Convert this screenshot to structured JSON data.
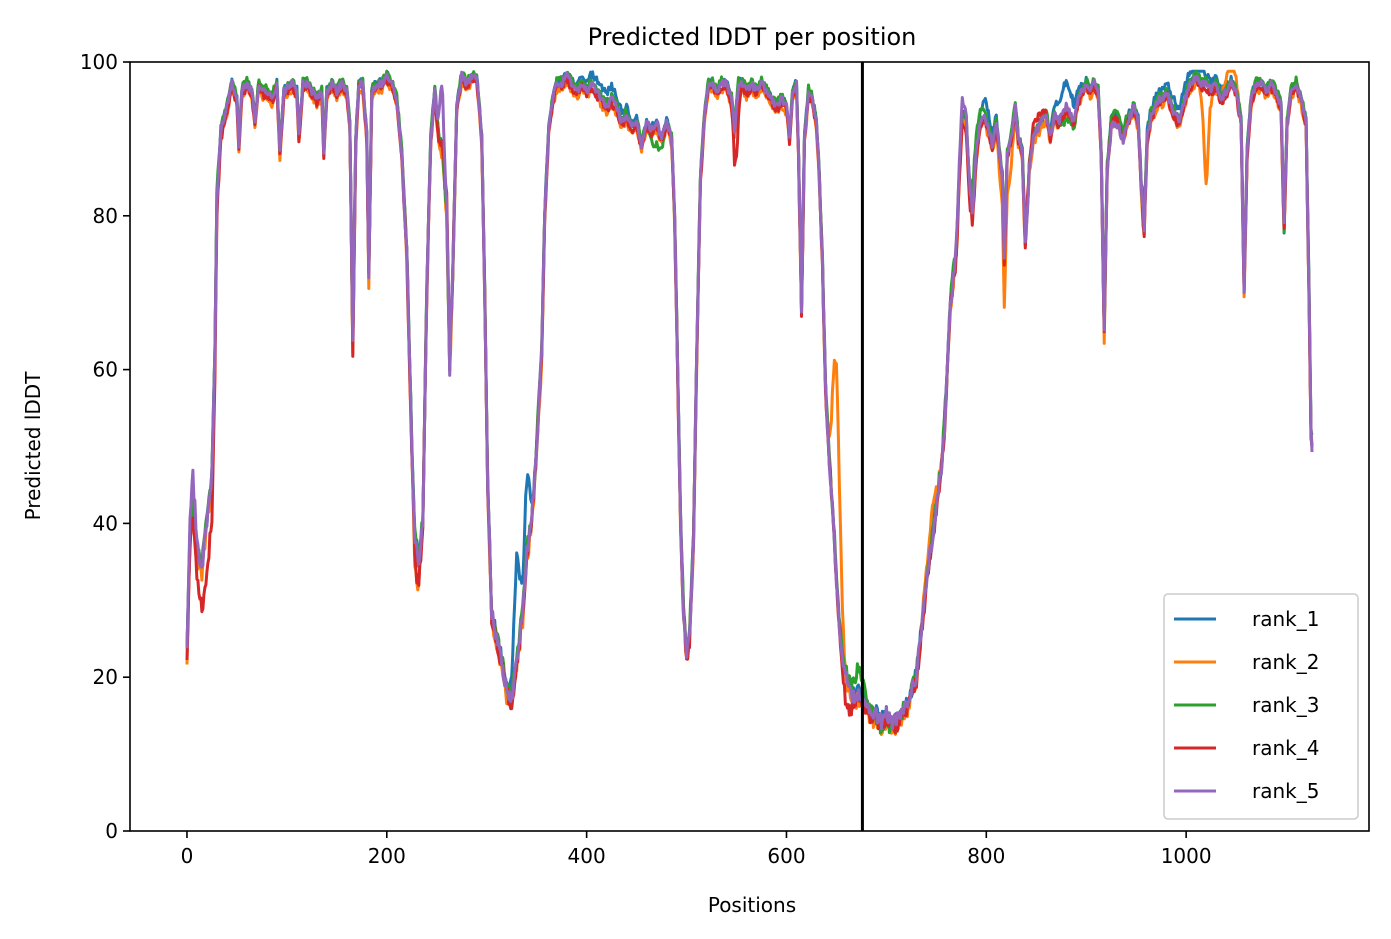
{
  "chart_data": {
    "type": "line",
    "title": "Predicted lDDT per position",
    "xlabel": "Positions",
    "ylabel": "Predicted lDDT",
    "xlim": [
      -57,
      1183
    ],
    "ylim": [
      0,
      100
    ],
    "xticks": [
      0,
      200,
      400,
      600,
      800,
      1000
    ],
    "yticks": [
      0,
      20,
      40,
      60,
      80,
      100
    ],
    "vline": 676,
    "legend_position": "lower-right",
    "grid": false,
    "base_profile": [
      [
        0,
        23
      ],
      [
        3,
        38
      ],
      [
        6,
        42
      ],
      [
        10,
        36
      ],
      [
        15,
        34
      ],
      [
        20,
        40
      ],
      [
        25,
        46
      ],
      [
        28,
        62
      ],
      [
        30,
        82
      ],
      [
        34,
        91
      ],
      [
        40,
        94
      ],
      [
        45,
        97
      ],
      [
        50,
        95
      ],
      [
        52,
        89
      ],
      [
        55,
        96
      ],
      [
        60,
        97
      ],
      [
        65,
        96
      ],
      [
        68,
        92
      ],
      [
        72,
        97
      ],
      [
        76,
        96
      ],
      [
        80,
        96
      ],
      [
        85,
        95
      ],
      [
        90,
        97
      ],
      [
        93,
        88
      ],
      [
        97,
        96
      ],
      [
        105,
        97
      ],
      [
        110,
        96
      ],
      [
        112,
        90
      ],
      [
        116,
        97
      ],
      [
        120,
        97
      ],
      [
        125,
        96
      ],
      [
        130,
        95
      ],
      [
        135,
        96
      ],
      [
        137,
        88
      ],
      [
        140,
        96
      ],
      [
        145,
        97
      ],
      [
        150,
        96
      ],
      [
        155,
        97
      ],
      [
        160,
        96
      ],
      [
        163,
        92
      ],
      [
        166,
        63
      ],
      [
        169,
        90
      ],
      [
        172,
        97
      ],
      [
        176,
        97
      ],
      [
        180,
        90
      ],
      [
        182,
        72
      ],
      [
        185,
        96
      ],
      [
        190,
        97
      ],
      [
        195,
        97
      ],
      [
        200,
        98
      ],
      [
        205,
        97
      ],
      [
        210,
        95
      ],
      [
        215,
        88
      ],
      [
        220,
        75
      ],
      [
        225,
        50
      ],
      [
        228,
        38
      ],
      [
        232,
        35
      ],
      [
        236,
        40
      ],
      [
        240,
        70
      ],
      [
        244,
        90
      ],
      [
        248,
        96
      ],
      [
        252,
        90
      ],
      [
        256,
        88
      ],
      [
        260,
        80
      ],
      [
        263,
        60
      ],
      [
        266,
        72
      ],
      [
        270,
        94
      ],
      [
        275,
        98
      ],
      [
        280,
        97
      ],
      [
        285,
        98
      ],
      [
        290,
        98
      ],
      [
        295,
        90
      ],
      [
        298,
        70
      ],
      [
        301,
        45
      ],
      [
        305,
        28
      ],
      [
        310,
        25
      ],
      [
        315,
        22
      ],
      [
        320,
        18
      ],
      [
        325,
        17
      ],
      [
        328,
        20
      ],
      [
        332,
        24
      ],
      [
        336,
        28
      ],
      [
        340,
        36
      ],
      [
        345,
        40
      ],
      [
        350,
        50
      ],
      [
        355,
        62
      ],
      [
        358,
        80
      ],
      [
        362,
        91
      ],
      [
        366,
        95
      ],
      [
        370,
        97
      ],
      [
        375,
        97
      ],
      [
        380,
        98
      ],
      [
        385,
        97
      ],
      [
        390,
        96
      ],
      [
        395,
        97
      ],
      [
        400,
        96
      ],
      [
        405,
        97
      ],
      [
        410,
        96
      ],
      [
        415,
        95
      ],
      [
        420,
        94
      ],
      [
        425,
        95
      ],
      [
        430,
        94
      ],
      [
        435,
        92
      ],
      [
        440,
        93
      ],
      [
        445,
        91
      ],
      [
        450,
        92
      ],
      [
        455,
        89
      ],
      [
        460,
        92
      ],
      [
        465,
        91
      ],
      [
        470,
        92
      ],
      [
        475,
        90
      ],
      [
        480,
        92
      ],
      [
        485,
        90
      ],
      [
        488,
        80
      ],
      [
        491,
        60
      ],
      [
        494,
        40
      ],
      [
        497,
        28
      ],
      [
        500,
        23
      ],
      [
        503,
        25
      ],
      [
        507,
        38
      ],
      [
        510,
        60
      ],
      [
        514,
        85
      ],
      [
        518,
        93
      ],
      [
        522,
        97
      ],
      [
        526,
        97
      ],
      [
        530,
        96
      ],
      [
        535,
        97
      ],
      [
        540,
        97
      ],
      [
        545,
        95
      ],
      [
        548,
        91
      ],
      [
        552,
        97
      ],
      [
        556,
        97
      ],
      [
        560,
        96
      ],
      [
        565,
        97
      ],
      [
        570,
        96
      ],
      [
        575,
        97
      ],
      [
        580,
        96
      ],
      [
        585,
        95
      ],
      [
        590,
        94
      ],
      [
        595,
        95
      ],
      [
        600,
        94
      ],
      [
        603,
        90
      ],
      [
        606,
        96
      ],
      [
        610,
        97
      ],
      [
        612,
        88
      ],
      [
        615,
        68
      ],
      [
        618,
        90
      ],
      [
        622,
        96
      ],
      [
        626,
        95
      ],
      [
        630,
        92
      ],
      [
        633,
        85
      ],
      [
        636,
        74
      ],
      [
        639,
        58
      ],
      [
        642,
        50
      ],
      [
        645,
        44
      ],
      [
        648,
        38
      ],
      [
        651,
        30
      ],
      [
        654,
        25
      ],
      [
        657,
        22
      ],
      [
        660,
        20
      ],
      [
        664,
        18
      ],
      [
        668,
        17
      ],
      [
        672,
        18
      ],
      [
        676,
        17
      ],
      [
        680,
        16
      ],
      [
        685,
        15
      ],
      [
        690,
        15
      ],
      [
        695,
        14
      ],
      [
        700,
        15
      ],
      [
        705,
        14
      ],
      [
        710,
        14
      ],
      [
        715,
        15
      ],
      [
        720,
        16
      ],
      [
        725,
        18
      ],
      [
        730,
        20
      ],
      [
        735,
        26
      ],
      [
        740,
        32
      ],
      [
        745,
        37
      ],
      [
        750,
        42
      ],
      [
        755,
        47
      ],
      [
        758,
        52
      ],
      [
        761,
        60
      ],
      [
        764,
        68
      ],
      [
        767,
        72
      ],
      [
        770,
        75
      ],
      [
        773,
        85
      ],
      [
        776,
        93
      ],
      [
        780,
        92
      ],
      [
        783,
        84
      ],
      [
        786,
        80
      ],
      [
        790,
        88
      ],
      [
        794,
        92
      ],
      [
        798,
        93
      ],
      [
        802,
        91
      ],
      [
        806,
        89
      ],
      [
        810,
        92
      ],
      [
        813,
        88
      ],
      [
        816,
        85
      ],
      [
        818,
        74
      ],
      [
        821,
        88
      ],
      [
        825,
        90
      ],
      [
        829,
        94
      ],
      [
        832,
        90
      ],
      [
        836,
        88
      ],
      [
        839,
        76
      ],
      [
        843,
        86
      ],
      [
        847,
        90
      ],
      [
        851,
        91
      ],
      [
        855,
        92
      ],
      [
        860,
        93
      ],
      [
        864,
        90
      ],
      [
        868,
        93
      ],
      [
        872,
        92
      ],
      [
        876,
        93
      ],
      [
        880,
        94
      ],
      [
        884,
        93
      ],
      [
        888,
        92
      ],
      [
        892,
        95
      ],
      [
        896,
        96
      ],
      [
        900,
        97
      ],
      [
        904,
        96
      ],
      [
        908,
        97
      ],
      [
        912,
        96
      ],
      [
        915,
        88
      ],
      [
        918,
        65
      ],
      [
        921,
        86
      ],
      [
        925,
        92
      ],
      [
        929,
        93
      ],
      [
        933,
        92
      ],
      [
        937,
        90
      ],
      [
        940,
        92
      ],
      [
        944,
        93
      ],
      [
        948,
        94
      ],
      [
        952,
        92
      ],
      [
        955,
        84
      ],
      [
        958,
        78
      ],
      [
        961,
        90
      ],
      [
        965,
        93
      ],
      [
        969,
        94
      ],
      [
        973,
        95
      ],
      [
        977,
        95
      ],
      [
        981,
        96
      ],
      [
        985,
        94
      ],
      [
        989,
        93
      ],
      [
        993,
        92
      ],
      [
        997,
        94
      ],
      [
        1001,
        96
      ],
      [
        1005,
        97
      ],
      [
        1010,
        98
      ],
      [
        1015,
        97
      ],
      [
        1020,
        97
      ],
      [
        1025,
        96
      ],
      [
        1030,
        97
      ],
      [
        1035,
        95
      ],
      [
        1040,
        96
      ],
      [
        1045,
        97
      ],
      [
        1050,
        96
      ],
      [
        1055,
        92
      ],
      [
        1058,
        70
      ],
      [
        1061,
        88
      ],
      [
        1065,
        95
      ],
      [
        1070,
        97
      ],
      [
        1075,
        97
      ],
      [
        1080,
        96
      ],
      [
        1085,
        97
      ],
      [
        1090,
        96
      ],
      [
        1095,
        94
      ],
      [
        1098,
        78
      ],
      [
        1101,
        92
      ],
      [
        1105,
        96
      ],
      [
        1110,
        97
      ],
      [
        1115,
        95
      ],
      [
        1120,
        92
      ],
      [
        1123,
        70
      ],
      [
        1125,
        52
      ],
      [
        1126,
        50
      ]
    ],
    "series": [
      {
        "name": "rank_1",
        "color": "#1f77b4",
        "offset": 0.4,
        "seed": 11,
        "bumps": [
          [
            330,
            13,
            4
          ],
          [
            340,
            9,
            4
          ],
          [
            420,
            1.5,
            25
          ],
          [
            800,
            2,
            10
          ],
          [
            880,
            3,
            12
          ],
          [
            1000,
            1.5,
            40
          ]
        ]
      },
      {
        "name": "rank_2",
        "color": "#ff7f0e",
        "offset": -0.6,
        "seed": 23,
        "bumps": [
          [
            230,
            -4,
            3
          ],
          [
            650,
            28,
            5
          ],
          [
            745,
            4,
            8
          ],
          [
            820,
            -5,
            6
          ],
          [
            1020,
            -12,
            3
          ],
          [
            1045,
            4,
            8
          ]
        ]
      },
      {
        "name": "rank_3",
        "color": "#2ca02c",
        "offset": 0.6,
        "seed": 37,
        "bumps": [
          [
            470,
            -3,
            8
          ],
          [
            672,
            3,
            6
          ],
          [
            700,
            -1.5,
            12
          ],
          [
            880,
            -2,
            10
          ],
          [
            790,
            2,
            6
          ]
        ]
      },
      {
        "name": "rank_4",
        "color": "#d62728",
        "offset": -0.3,
        "seed": 53,
        "bumps": [
          [
            20,
            -6,
            10
          ],
          [
            230,
            -3,
            4
          ],
          [
            260,
            3,
            5
          ],
          [
            550,
            -6,
            3
          ],
          [
            660,
            -3,
            6
          ],
          [
            780,
            -1,
            8
          ],
          [
            850,
            2,
            10
          ]
        ]
      },
      {
        "name": "rank_5",
        "color": "#9467bd",
        "offset": 0.2,
        "seed": 71,
        "bumps": [
          [
            5,
            4,
            5
          ],
          [
            255,
            8,
            3
          ],
          [
            775,
            2,
            5
          ],
          [
            930,
            -1,
            10
          ]
        ]
      }
    ]
  }
}
